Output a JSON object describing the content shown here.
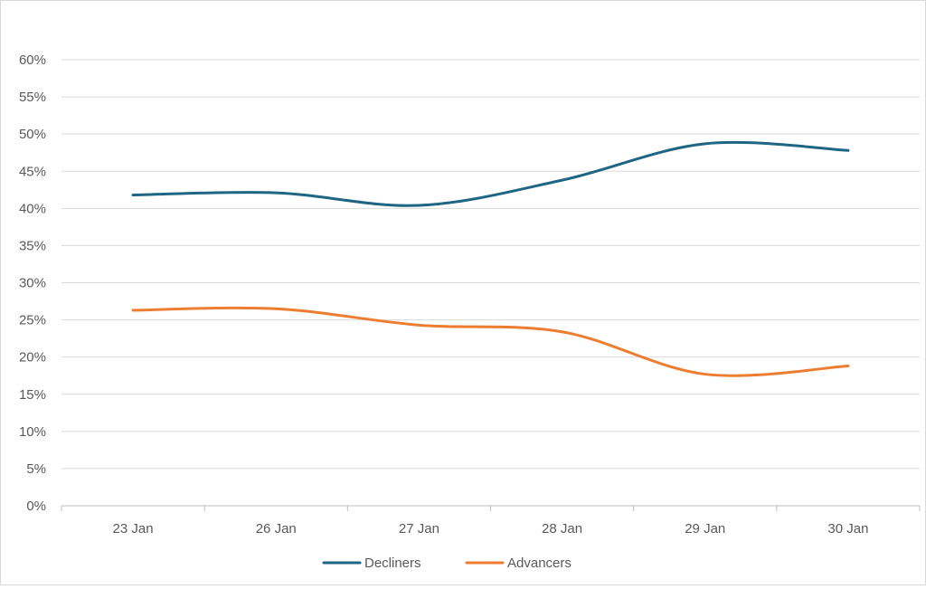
{
  "chart_data": {
    "type": "line",
    "title": "",
    "xlabel": "",
    "ylabel": "",
    "categories": [
      "23 Jan",
      "26 Jan",
      "27 Jan",
      "28 Jan",
      "29 Jan",
      "30 Jan"
    ],
    "series": [
      {
        "name": "Decliners",
        "color": "#1f6584",
        "values": [
          41.8,
          42.1,
          40.4,
          43.8,
          48.7,
          47.8
        ]
      },
      {
        "name": "Advancers",
        "color": "#ed7d31",
        "values": [
          26.3,
          26.5,
          24.3,
          23.4,
          17.7,
          18.8
        ]
      }
    ],
    "ylim": [
      0,
      60
    ],
    "y_ticks": [
      0,
      5,
      10,
      15,
      20,
      25,
      30,
      35,
      40,
      45,
      50,
      55,
      60
    ],
    "y_tick_labels": [
      "0%",
      "5%",
      "10%",
      "15%",
      "20%",
      "25%",
      "30%",
      "35%",
      "40%",
      "45%",
      "50%",
      "55%",
      "60%"
    ],
    "grid": true,
    "smooth": true,
    "legend_position": "bottom"
  }
}
